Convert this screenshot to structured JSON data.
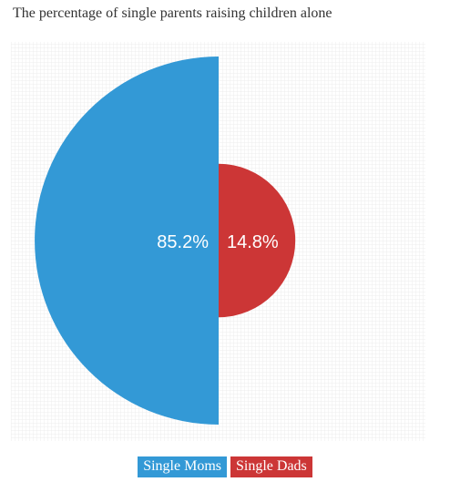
{
  "chart_data": {
    "type": "pie",
    "title": "The percentage of single parents raising children alone",
    "slices": [
      {
        "label": "Single Moms",
        "value": 85.2,
        "value_label": "85.2%",
        "color": "#3399d6"
      },
      {
        "label": "Single Dads",
        "value": 14.8,
        "value_label": "14.8%",
        "color": "#cc3636"
      }
    ],
    "legend_position": "bottom",
    "background": "grid"
  }
}
